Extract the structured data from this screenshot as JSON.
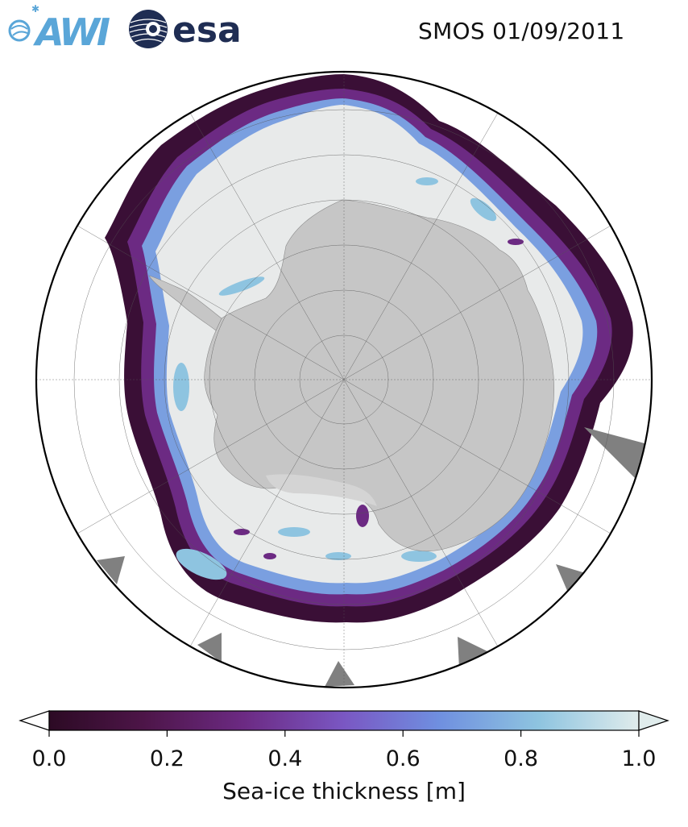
{
  "header": {
    "title": "SMOS 01/09/2011",
    "logos": [
      {
        "name": "awi-logo",
        "text": "AWI",
        "color": "#5aa6d8"
      },
      {
        "name": "esa-logo",
        "text": "esa",
        "color": "#1f2d53"
      }
    ]
  },
  "map": {
    "projection": "south-polar-stereographic",
    "land_color": "#c6c6c6",
    "open_water_color": "#ffffff",
    "thick_ice_color": "#e8eaea",
    "missing_data_color": "#808080"
  },
  "colorbar": {
    "label": "Sea-ice thickness [m]",
    "min": 0.0,
    "max": 1.0,
    "ticks": [
      "0.0",
      "0.2",
      "0.4",
      "0.6",
      "0.8",
      "1.0"
    ],
    "extend": "both",
    "colormap": [
      "#2c0a24",
      "#4d1548",
      "#6c2a83",
      "#7a57c3",
      "#6f8fe0",
      "#8ec4e0",
      "#e0ecec"
    ]
  }
}
